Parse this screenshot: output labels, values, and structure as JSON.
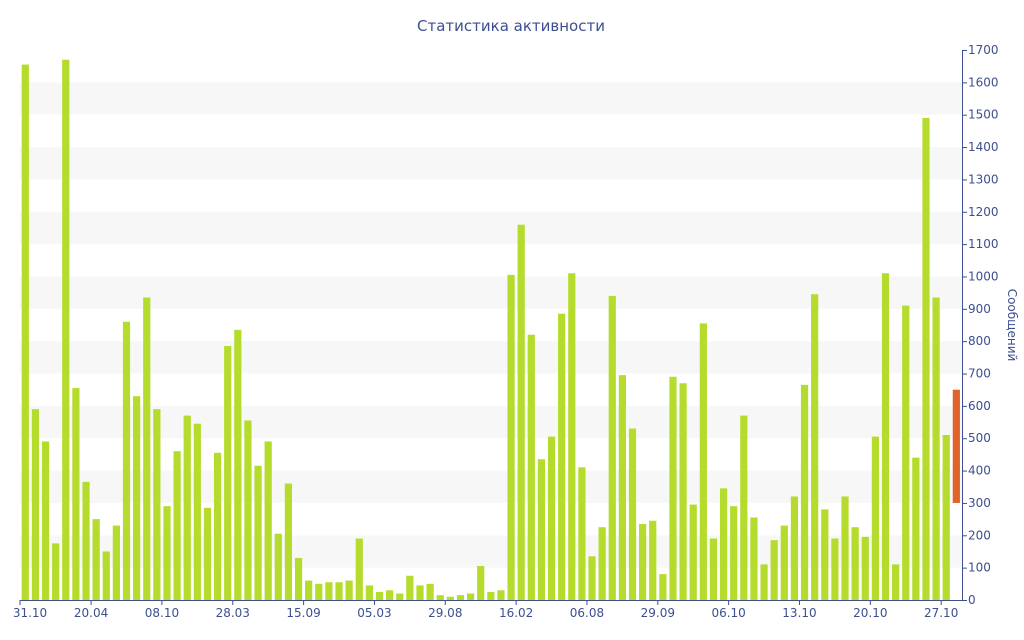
{
  "chart_data": {
    "type": "bar",
    "title": "Статистика активности",
    "xlabel": "",
    "ylabel": "Сообщений",
    "ylim": [
      0,
      1700
    ],
    "y_ticks": [
      0,
      100,
      200,
      300,
      400,
      500,
      600,
      700,
      800,
      900,
      1000,
      1100,
      1200,
      1300,
      1400,
      1500,
      1600,
      1700
    ],
    "y_axis_side": "right",
    "grid": "alternating horizontal bands",
    "x_tick_labels": [
      {
        "label": "31.10",
        "index": 0
      },
      {
        "label": "20.04",
        "index": 7
      },
      {
        "label": "08.10",
        "index": 14
      },
      {
        "label": "28.03",
        "index": 21
      },
      {
        "label": "15.09",
        "index": 28
      },
      {
        "label": "05.03",
        "index": 35
      },
      {
        "label": "29.08",
        "index": 42
      },
      {
        "label": "16.02",
        "index": 49
      },
      {
        "label": "06.08",
        "index": 56
      },
      {
        "label": "29.09",
        "index": 63
      },
      {
        "label": "06.10",
        "index": 70
      },
      {
        "label": "13.10",
        "index": 77
      },
      {
        "label": "20.10",
        "index": 84
      },
      {
        "label": "27.10",
        "index": 91
      }
    ],
    "series": [
      {
        "values": [
          1655,
          590,
          490,
          175,
          1670,
          655,
          365,
          250,
          150,
          230,
          860,
          630,
          935,
          590,
          290,
          460,
          570,
          545,
          285,
          455,
          785,
          835,
          555,
          415,
          490,
          205,
          360,
          130,
          60,
          50,
          55,
          55,
          60,
          190,
          45,
          25,
          30,
          20,
          75,
          45,
          50,
          15,
          10,
          15,
          20,
          105,
          25,
          30,
          1005,
          1160,
          820,
          435,
          505,
          885,
          1010,
          410,
          135,
          225,
          940,
          695,
          530,
          235,
          245,
          80,
          690,
          670,
          295,
          855,
          190,
          345,
          290,
          570,
          255,
          110,
          185,
          230,
          320,
          665,
          945,
          280,
          190,
          320,
          225,
          195,
          505,
          1010,
          110,
          910,
          440,
          1490,
          935,
          510
        ],
        "color": "#b5dc2c"
      }
    ],
    "highlight": {
      "index": 92,
      "from": 300,
      "to": 650,
      "color": "#e0632c"
    }
  }
}
